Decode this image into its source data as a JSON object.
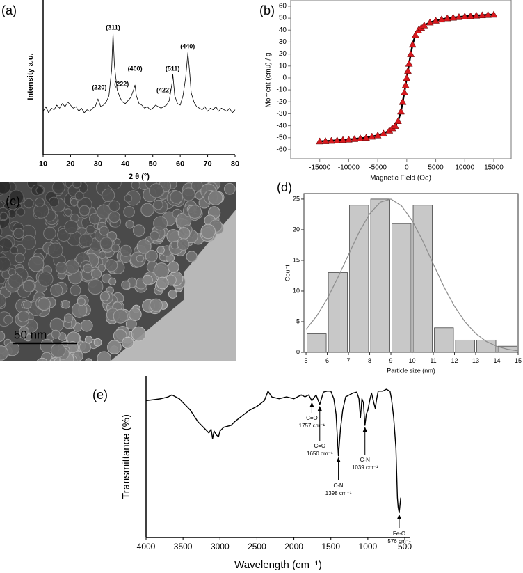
{
  "chart_data": [
    {
      "type": "line",
      "panel_label": "(a)",
      "xlabel": "2 θ (°)",
      "ylabel": "Intensity a.u.",
      "x": [
        10,
        11,
        12,
        13,
        14,
        15,
        16,
        17,
        18,
        19,
        20,
        21,
        22,
        23,
        24,
        25,
        26,
        27,
        28,
        29,
        30,
        31,
        32,
        33,
        34,
        35,
        35.5,
        36,
        37,
        38,
        39,
        40,
        41,
        42,
        43,
        43.5,
        44,
        45,
        46,
        47,
        48,
        49,
        50,
        51,
        52,
        53,
        54,
        55,
        56,
        57,
        57.3,
        58,
        59,
        60,
        61,
        62,
        62.8,
        63.5,
        64,
        65,
        66,
        67,
        68,
        69,
        70,
        71,
        72,
        73,
        74,
        75,
        76,
        77,
        78,
        79,
        80
      ],
      "values": [
        28,
        31,
        27,
        30,
        29,
        32,
        30,
        33,
        31,
        34,
        32,
        30,
        31,
        28,
        30,
        27,
        29,
        28,
        30,
        31,
        36,
        31,
        32,
        34,
        38,
        55,
        79,
        58,
        42,
        37,
        34,
        33,
        35,
        37,
        42,
        45,
        38,
        33,
        32,
        30,
        31,
        29,
        30,
        32,
        31,
        30,
        31,
        32,
        35,
        46,
        52,
        38,
        33,
        32,
        38,
        50,
        66,
        52,
        40,
        34,
        31,
        30,
        29,
        31,
        28,
        30,
        29,
        31,
        28,
        30,
        29,
        28,
        30,
        27,
        29
      ],
      "color": "#000000",
      "xlim": [
        10,
        80
      ],
      "ylim": [
        0,
        100
      ],
      "xticks": [
        10,
        20,
        30,
        40,
        50,
        60,
        70,
        80
      ],
      "annotations": [
        "(220)",
        "(311)",
        "(222)",
        "(400)",
        "(422)",
        "(511)",
        "(440)"
      ]
    },
    {
      "type": "scatter",
      "panel_label": "(b)",
      "xlabel": "Magnetic Field (Oe)",
      "ylabel": "Moment (emu) / g",
      "x": [
        -15000,
        -14000,
        -13000,
        -12000,
        -11000,
        -10000,
        -9000,
        -8000,
        -7000,
        -6000,
        -5000,
        -4000,
        -3000,
        -2500,
        -2000,
        -1500,
        -1000,
        -700,
        -400,
        -200,
        0,
        200,
        400,
        700,
        1000,
        1500,
        2000,
        2500,
        3000,
        4000,
        5000,
        6000,
        7000,
        8000,
        9000,
        10000,
        11000,
        12000,
        13000,
        14000,
        15000
      ],
      "values": [
        -53,
        -52.8,
        -52.5,
        -52.2,
        -51.8,
        -51.5,
        -51,
        -50.5,
        -50,
        -49,
        -48,
        -46.5,
        -44,
        -42,
        -40,
        -36,
        -28,
        -20,
        -12,
        -6,
        0,
        6,
        12,
        20,
        28,
        36,
        40,
        42,
        44,
        46.5,
        48,
        49,
        50,
        50.5,
        51,
        51.5,
        51.8,
        52.2,
        52.5,
        52.8,
        53
      ],
      "color": "#d9181e",
      "line_color": "#000000",
      "xlim": [
        -20000,
        18000
      ],
      "ylim": [
        -67.6,
        65.2
      ],
      "xticks": [
        -15000,
        -10000,
        -5000,
        0,
        5000,
        10000,
        15000
      ],
      "yticks": [
        -60,
        -50,
        -40,
        -30,
        -20,
        -10,
        0,
        10,
        20,
        30,
        40,
        50,
        60
      ]
    },
    {
      "type": "image",
      "panel_label": "(c)",
      "scale_bar": "50 nm"
    },
    {
      "type": "histogram",
      "panel_label": "(d)",
      "xlabel": "Particle size (nm)",
      "ylabel": "Count",
      "bins": [
        5,
        6,
        7,
        8,
        9,
        10,
        11,
        12,
        13,
        14,
        15
      ],
      "values": [
        3,
        13,
        24,
        25,
        21,
        24,
        4,
        2,
        2,
        1
      ],
      "color": "#c8c8c8",
      "fit": {
        "x": [
          5,
          5.5,
          6,
          6.5,
          7,
          7.5,
          8,
          8.5,
          9,
          9.5,
          10,
          10.5,
          11,
          11.5,
          12,
          12.5,
          13,
          13.5,
          14,
          14.5,
          15
        ],
        "values": [
          3.73,
          5.9,
          8.74,
          12.2,
          15.9,
          19.6,
          22.6,
          24.5,
          25,
          23.9,
          21.5,
          18.2,
          14.4,
          10.7,
          7.5,
          4.95,
          3.06,
          1.77,
          0.97,
          0.5,
          0.24
        ],
        "color": "#8c8c8c"
      },
      "xlim": [
        4.9,
        15
      ],
      "ylim": [
        0,
        25.9
      ],
      "xticks": [
        5,
        6,
        7,
        8,
        9,
        10,
        11,
        12,
        13,
        14,
        15
      ],
      "yticks": [
        0,
        5,
        10,
        15,
        20,
        25
      ]
    },
    {
      "type": "line",
      "panel_label": "(e)",
      "xlabel": "Wavelength (cm⁻¹)",
      "ylabel": "Transmittance (%)",
      "x": [
        4000,
        3900,
        3800,
        3700,
        3650,
        3600,
        3550,
        3500,
        3450,
        3400,
        3350,
        3300,
        3250,
        3200,
        3150,
        3120,
        3100,
        3080,
        3050,
        3020,
        3000,
        2950,
        2900,
        2850,
        2800,
        2700,
        2600,
        2500,
        2400,
        2350,
        2300,
        2200,
        2100,
        2000,
        1950,
        1900,
        1850,
        1800,
        1757,
        1720,
        1700,
        1680,
        1650,
        1620,
        1600,
        1550,
        1500,
        1460,
        1430,
        1398,
        1370,
        1340,
        1300,
        1250,
        1200,
        1150,
        1120,
        1100,
        1080,
        1060,
        1039,
        1020,
        1000,
        970,
        950,
        920,
        900,
        880,
        860,
        800,
        750,
        700,
        680,
        650,
        620,
        600,
        590,
        576,
        565,
        555
      ],
      "values": [
        87,
        87.5,
        88,
        89,
        90,
        89,
        88,
        86,
        84,
        82,
        79,
        76,
        74,
        72,
        70,
        72,
        67,
        71,
        69,
        68,
        71,
        73,
        73.5,
        74,
        76,
        79,
        82,
        84,
        87,
        92,
        89,
        88,
        89,
        88,
        89,
        90,
        89,
        90,
        87,
        89,
        90,
        88,
        85,
        89,
        91.5,
        92,
        92,
        88,
        80,
        58,
        72,
        82,
        89,
        90,
        91,
        91.5,
        88,
        78,
        88,
        86,
        74,
        80,
        82,
        88,
        91,
        86,
        83,
        88,
        92,
        92,
        93,
        92,
        88,
        78,
        62,
        36,
        31,
        28,
        32,
        36
      ],
      "color": "#000000",
      "xlim": [
        4000,
        425
      ],
      "ylim": [
        15,
        100
      ],
      "xticks": [
        4000,
        3500,
        3000,
        2500,
        2000,
        1500,
        1000,
        500
      ],
      "annotations": [
        {
          "name": "C=O",
          "value": 1757,
          "label": "1757 cm⁻¹"
        },
        {
          "name": "C=O",
          "value": 1650,
          "label": "1650 cm⁻¹"
        },
        {
          "name": "C-N",
          "value": 1398,
          "label": "1398 cm⁻¹"
        },
        {
          "name": "C-N",
          "value": 1039,
          "label": "1039 cm⁻¹"
        },
        {
          "name": "Fe-O",
          "value": 576,
          "label": "576 cm⁻¹"
        }
      ]
    }
  ]
}
